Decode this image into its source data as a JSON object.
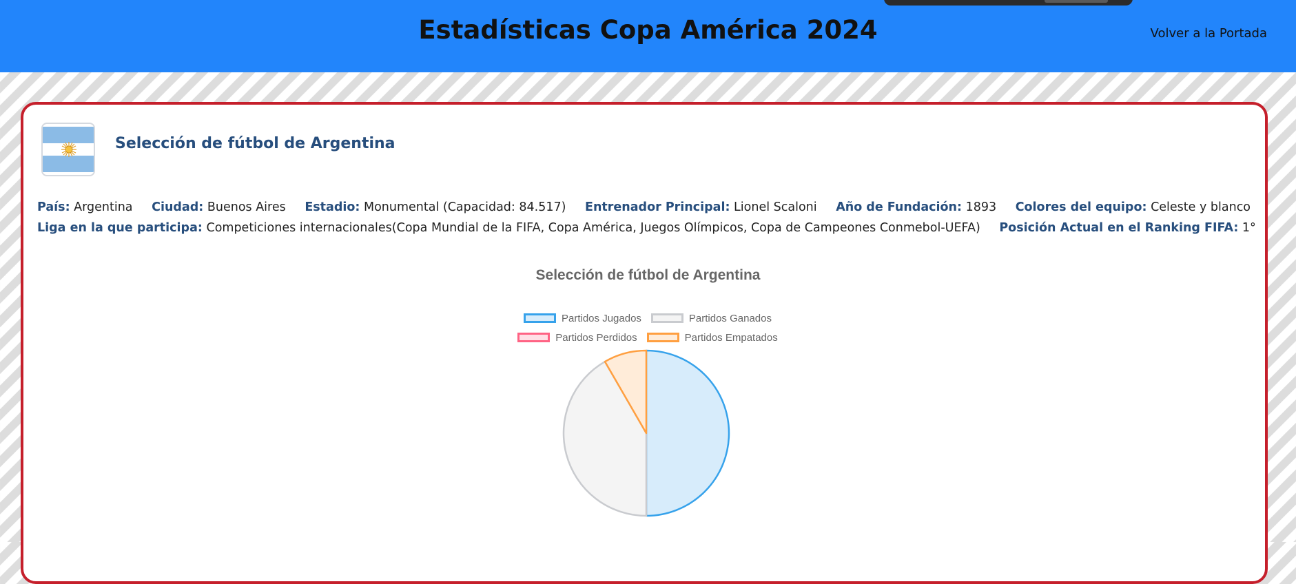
{
  "header": {
    "title": "Estadísticas Copa América 2024",
    "back_link": "Volver a la Portada"
  },
  "team": {
    "name": "Selección de fútbol de Argentina",
    "flag_icon": "argentina-flag-icon"
  },
  "info": {
    "pais_label": "País:",
    "pais": "Argentina",
    "ciudad_label": "Ciudad:",
    "ciudad": "Buenos Aires",
    "estadio_label": "Estadio:",
    "estadio": "Monumental (Capacidad: 84.517)",
    "entrenador_label": "Entrenador Principal:",
    "entrenador": "Lionel Scaloni",
    "fundacion_label": "Año de Fundación:",
    "fundacion": "1893",
    "colores_label": "Colores del equipo:",
    "colores": "Celeste y blanco",
    "liga_label": "Liga en la que participa:",
    "liga": "Competiciones internacionales(Copa Mundial de la FIFA, Copa América, Juegos Olímpicos, Copa de Campeones Conmebol-UEFA)",
    "ranking_label": "Posición Actual en el Ranking FIFA:",
    "ranking": "1°"
  },
  "colors": {
    "header_bg": "#2285fb",
    "card_border": "#c51f2b",
    "label": "#274e7d"
  },
  "chart_data": {
    "type": "pie",
    "title": "Selección de fútbol de Argentina",
    "legend_position": "top",
    "labels": [
      "Partidos Jugados",
      "Partidos Ganados",
      "Partidos Perdidos",
      "Partidos Empatados"
    ],
    "values": [
      6,
      5,
      0,
      1
    ],
    "border_colors": [
      "#36a2eb",
      "#c9cbcf",
      "#ff6384",
      "#ff9f40"
    ],
    "fill_colors": [
      "#d7ecfb",
      "#f4f4f4",
      "#ffe0e6",
      "#ffecd9"
    ]
  }
}
